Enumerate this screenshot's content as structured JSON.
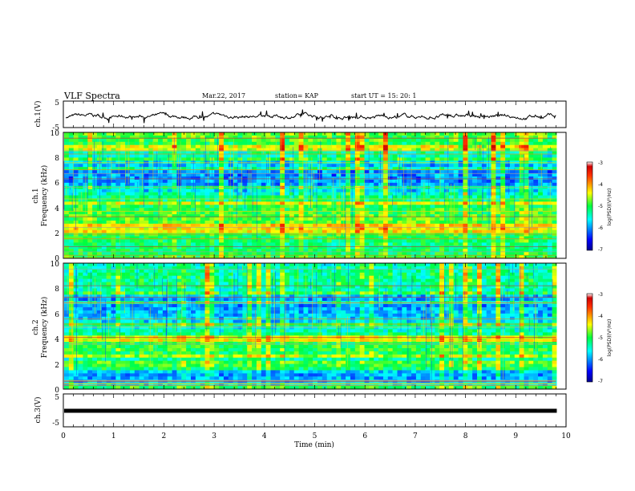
{
  "header": {
    "title": "VLF Spectra",
    "date": "Mar.22, 2017",
    "station": "station= KAP",
    "start": "start UT = 15: 20: 1"
  },
  "axes": {
    "ch1_volt_label": "ch.1(V)",
    "ch1_volt_ticks": [
      "5",
      "-5"
    ],
    "spec1_label_line1": "ch.1",
    "spec1_label_line2": "Frequency (kHz)",
    "spec2_label_line1": "ch.2",
    "spec2_label_line2": "Frequency (kHz)",
    "ch3_volt_label": "ch.3(V)",
    "ch3_volt_ticks": [
      "5",
      "-5"
    ],
    "freq_ticks": [
      "0",
      "2",
      "4",
      "6",
      "8",
      "10"
    ],
    "time_ticks": [
      "0",
      "1",
      "2",
      "3",
      "4",
      "5",
      "6",
      "7",
      "8",
      "9",
      "10"
    ],
    "xlabel": "Time (min)",
    "colorbar_label": "log(PSD)(V²/Hz)",
    "colorbar_ticks": [
      "-3",
      "-4",
      "-5",
      "-6",
      "-7"
    ]
  },
  "colors": {
    "spectrogram_low": "#0000c8",
    "spectrogram_mid": "#00e060",
    "spectrogram_high": "#c80000"
  },
  "chart_data": [
    {
      "type": "line",
      "panel": "ch.1 waveform",
      "ylabel": "ch.1(V)",
      "ylim": [
        -5,
        5
      ],
      "xlim": [
        0,
        10
      ],
      "x_unit": "min",
      "approx_level_V": -0.8
    },
    {
      "type": "heatmap",
      "panel": "ch.1 spectrogram",
      "ylabel": "Frequency (kHz)",
      "ylim": [
        0,
        10
      ],
      "xlim": [
        0,
        10
      ],
      "colorbar_label": "log(PSD)(V²/Hz)",
      "colorbar_range": [
        -7,
        -3
      ],
      "band_profile_khz": [
        0,
        1,
        2,
        3,
        4,
        5,
        5.5,
        6,
        7,
        8,
        9,
        10
      ],
      "band_level_logpsd": [
        -5.0,
        -5.2,
        -5.0,
        -4.8,
        -5.0,
        -5.3,
        -5.8,
        -6.0,
        -6.0,
        -5.5,
        -5.0,
        -4.8
      ]
    },
    {
      "type": "heatmap",
      "panel": "ch.2 spectrogram",
      "ylabel": "Frequency (kHz)",
      "ylim": [
        0,
        10
      ],
      "xlim": [
        0,
        10
      ],
      "colorbar_label": "log(PSD)(V²/Hz)",
      "colorbar_range": [
        -7,
        -3
      ],
      "band_profile_khz": [
        0,
        1,
        2,
        3,
        4,
        5,
        6,
        7,
        8,
        9,
        10
      ],
      "band_level_logpsd": [
        -5.5,
        -6.0,
        -5.5,
        -5.0,
        -5.0,
        -5.6,
        -5.8,
        -6.0,
        -5.3,
        -5.2,
        -5.4
      ]
    },
    {
      "type": "line",
      "panel": "ch.3 waveform",
      "ylabel": "ch.3(V)",
      "ylim": [
        -5,
        5
      ],
      "xlim": [
        0,
        9.8
      ],
      "x_unit": "min",
      "constant_V": 0.0
    }
  ]
}
